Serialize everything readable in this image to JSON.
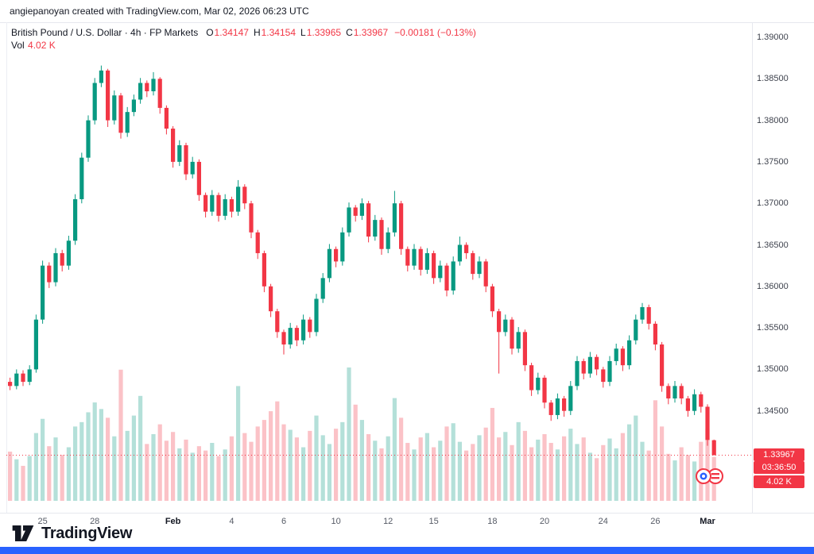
{
  "attribution": "angiepanoyan created with TradingView.com, Mar 02, 2026 06:23 UTC",
  "legend": {
    "title": "British Pound / U.S. Dollar · 4h · FP Markets",
    "o_label": "O",
    "o_value": "1.34147",
    "h_label": "H",
    "h_value": "1.34154",
    "l_label": "L",
    "l_value": "1.33965",
    "c_label": "C",
    "c_value": "1.33967",
    "change": "−0.00181 (−0.13%)",
    "vol_label": "Vol",
    "vol_value": "4.02 K"
  },
  "price_axis": {
    "current_price": "1.33967",
    "countdown": "03:36:50",
    "volume_badge": "4.02 K"
  },
  "footer": {
    "brand": "TradingView"
  },
  "colors": {
    "up": "#089981",
    "down": "#f23645",
    "vol_up": "rgba(8,153,129,0.30)",
    "vol_down": "rgba(242,54,69,0.30)",
    "accent_blue": "#2962ff",
    "axis_text": "#3f434e"
  },
  "chart_data": {
    "type": "candlestick",
    "title": "British Pound / U.S. Dollar, 4h, FP Markets",
    "ylabel": "Price (USD)",
    "last_price": 1.33967,
    "last_volume_k": 4.02,
    "y_ticks": [
      "1.39000",
      "1.38500",
      "1.38000",
      "1.37500",
      "1.37000",
      "1.36500",
      "1.36000",
      "1.35500",
      "1.35000",
      "1.34500"
    ],
    "x_ticks": [
      {
        "text": "25",
        "idx": 5,
        "major": false
      },
      {
        "text": "28",
        "idx": 13,
        "major": false
      },
      {
        "text": "Feb",
        "idx": 25,
        "major": true
      },
      {
        "text": "4",
        "idx": 34,
        "major": false
      },
      {
        "text": "6",
        "idx": 42,
        "major": false
      },
      {
        "text": "10",
        "idx": 50,
        "major": false
      },
      {
        "text": "12",
        "idx": 58,
        "major": false
      },
      {
        "text": "15",
        "idx": 65,
        "major": false
      },
      {
        "text": "18",
        "idx": 74,
        "major": false
      },
      {
        "text": "20",
        "idx": 82,
        "major": false
      },
      {
        "text": "24",
        "idx": 91,
        "major": false
      },
      {
        "text": "26",
        "idx": 99,
        "major": false
      },
      {
        "text": "Mar",
        "idx": 107,
        "major": true
      }
    ],
    "ohlc_format": [
      "open",
      "high",
      "low",
      "close"
    ],
    "candles": [
      [
        1.3485,
        1.349,
        1.3475,
        1.348
      ],
      [
        1.348,
        1.35,
        1.3476,
        1.3495
      ],
      [
        1.3495,
        1.3499,
        1.348,
        1.3485
      ],
      [
        1.3485,
        1.3505,
        1.3481,
        1.35
      ],
      [
        1.35,
        1.3566,
        1.3496,
        1.356
      ],
      [
        1.356,
        1.3631,
        1.3555,
        1.3625
      ],
      [
        1.3625,
        1.3629,
        1.3598,
        1.3605
      ],
      [
        1.3605,
        1.3646,
        1.36,
        1.364
      ],
      [
        1.364,
        1.3644,
        1.3618,
        1.3625
      ],
      [
        1.3625,
        1.3661,
        1.362,
        1.3655
      ],
      [
        1.3655,
        1.3711,
        1.365,
        1.3705
      ],
      [
        1.3705,
        1.3761,
        1.37,
        1.3755
      ],
      [
        1.3755,
        1.3806,
        1.375,
        1.38
      ],
      [
        1.38,
        1.3851,
        1.3795,
        1.3845
      ],
      [
        1.3845,
        1.3866,
        1.384,
        1.386
      ],
      [
        1.386,
        1.3862,
        1.3792,
        1.38
      ],
      [
        1.38,
        1.3836,
        1.3795,
        1.383
      ],
      [
        1.383,
        1.3833,
        1.3778,
        1.3785
      ],
      [
        1.3785,
        1.3816,
        1.378,
        1.381
      ],
      [
        1.381,
        1.3831,
        1.3805,
        1.3825
      ],
      [
        1.3825,
        1.3851,
        1.382,
        1.3845
      ],
      [
        1.3845,
        1.3848,
        1.3828,
        1.3835
      ],
      [
        1.3835,
        1.3858,
        1.383,
        1.385
      ],
      [
        1.385,
        1.3852,
        1.3808,
        1.3815
      ],
      [
        1.3815,
        1.3818,
        1.3783,
        1.379
      ],
      [
        1.379,
        1.3793,
        1.3743,
        1.375
      ],
      [
        1.375,
        1.3776,
        1.3745,
        1.377
      ],
      [
        1.377,
        1.3773,
        1.3728,
        1.3735
      ],
      [
        1.3735,
        1.3756,
        1.373,
        1.375
      ],
      [
        1.375,
        1.3753,
        1.3703,
        1.371
      ],
      [
        1.371,
        1.3713,
        1.3683,
        1.369
      ],
      [
        1.369,
        1.3716,
        1.3685,
        1.371
      ],
      [
        1.371,
        1.3713,
        1.3678,
        1.3685
      ],
      [
        1.3685,
        1.3711,
        1.368,
        1.3705
      ],
      [
        1.3705,
        1.3708,
        1.3683,
        1.369
      ],
      [
        1.369,
        1.3728,
        1.3685,
        1.372
      ],
      [
        1.372,
        1.3723,
        1.3693,
        1.37
      ],
      [
        1.37,
        1.3703,
        1.3658,
        1.3665
      ],
      [
        1.3665,
        1.3668,
        1.3633,
        1.364
      ],
      [
        1.364,
        1.3643,
        1.3593,
        1.36
      ],
      [
        1.36,
        1.3603,
        1.3563,
        1.357
      ],
      [
        1.357,
        1.3573,
        1.3538,
        1.3545
      ],
      [
        1.3545,
        1.3548,
        1.3518,
        1.353
      ],
      [
        1.353,
        1.3556,
        1.3525,
        1.355
      ],
      [
        1.355,
        1.3553,
        1.3528,
        1.3535
      ],
      [
        1.3535,
        1.3566,
        1.353,
        1.356
      ],
      [
        1.356,
        1.3563,
        1.3538,
        1.3545
      ],
      [
        1.3545,
        1.3591,
        1.354,
        1.3585
      ],
      [
        1.3585,
        1.3616,
        1.358,
        1.361
      ],
      [
        1.361,
        1.3651,
        1.3605,
        1.3645
      ],
      [
        1.3645,
        1.3648,
        1.3623,
        1.363
      ],
      [
        1.363,
        1.3671,
        1.3625,
        1.3665
      ],
      [
        1.3665,
        1.3701,
        1.366,
        1.3695
      ],
      [
        1.3695,
        1.3698,
        1.3678,
        1.3685
      ],
      [
        1.3685,
        1.3706,
        1.368,
        1.37
      ],
      [
        1.37,
        1.3703,
        1.3653,
        1.366
      ],
      [
        1.366,
        1.3686,
        1.3655,
        1.368
      ],
      [
        1.368,
        1.3683,
        1.3638,
        1.3645
      ],
      [
        1.3645,
        1.3671,
        1.364,
        1.3665
      ],
      [
        1.3665,
        1.3715,
        1.366,
        1.37
      ],
      [
        1.37,
        1.3703,
        1.3638,
        1.3645
      ],
      [
        1.3645,
        1.3648,
        1.3618,
        1.3625
      ],
      [
        1.3625,
        1.3651,
        1.362,
        1.3645
      ],
      [
        1.3645,
        1.3648,
        1.3613,
        1.362
      ],
      [
        1.362,
        1.3646,
        1.3615,
        1.364
      ],
      [
        1.364,
        1.3643,
        1.3603,
        1.361
      ],
      [
        1.361,
        1.3631,
        1.3605,
        1.3625
      ],
      [
        1.3625,
        1.3628,
        1.3588,
        1.3595
      ],
      [
        1.3595,
        1.3636,
        1.359,
        1.363
      ],
      [
        1.363,
        1.366,
        1.3625,
        1.365
      ],
      [
        1.365,
        1.3653,
        1.3633,
        1.364
      ],
      [
        1.364,
        1.3643,
        1.3608,
        1.3615
      ],
      [
        1.3615,
        1.3636,
        1.361,
        1.363
      ],
      [
        1.363,
        1.3633,
        1.3593,
        1.36
      ],
      [
        1.36,
        1.3603,
        1.3563,
        1.357
      ],
      [
        1.357,
        1.3573,
        1.3495,
        1.3545
      ],
      [
        1.3545,
        1.3566,
        1.354,
        1.356
      ],
      [
        1.356,
        1.3563,
        1.3518,
        1.3525
      ],
      [
        1.3525,
        1.3551,
        1.352,
        1.3545
      ],
      [
        1.3545,
        1.3548,
        1.3498,
        1.3505
      ],
      [
        1.3505,
        1.3508,
        1.3468,
        1.3475
      ],
      [
        1.3475,
        1.3496,
        1.347,
        1.349
      ],
      [
        1.349,
        1.3493,
        1.3453,
        1.346
      ],
      [
        1.346,
        1.3463,
        1.3438,
        1.3445
      ],
      [
        1.3445,
        1.3471,
        1.344,
        1.3465
      ],
      [
        1.3465,
        1.3468,
        1.3443,
        1.345
      ],
      [
        1.345,
        1.3486,
        1.3445,
        1.348
      ],
      [
        1.348,
        1.3516,
        1.3475,
        1.351
      ],
      [
        1.351,
        1.3513,
        1.3488,
        1.3495
      ],
      [
        1.3495,
        1.3521,
        1.349,
        1.3515
      ],
      [
        1.3515,
        1.3518,
        1.3493,
        1.35
      ],
      [
        1.35,
        1.3503,
        1.3478,
        1.3485
      ],
      [
        1.3485,
        1.3516,
        1.348,
        1.351
      ],
      [
        1.351,
        1.3531,
        1.3505,
        1.3525
      ],
      [
        1.3525,
        1.3528,
        1.3498,
        1.3505
      ],
      [
        1.3505,
        1.3541,
        1.35,
        1.3535
      ],
      [
        1.3535,
        1.3566,
        1.353,
        1.356
      ],
      [
        1.356,
        1.358,
        1.3555,
        1.3575
      ],
      [
        1.3575,
        1.3578,
        1.3548,
        1.3555
      ],
      [
        1.3555,
        1.3558,
        1.3523,
        1.353
      ],
      [
        1.353,
        1.3533,
        1.3473,
        1.348
      ],
      [
        1.348,
        1.3483,
        1.3458,
        1.3465
      ],
      [
        1.3465,
        1.3486,
        1.346,
        1.348
      ],
      [
        1.348,
        1.3483,
        1.3458,
        1.3465
      ],
      [
        1.3465,
        1.3468,
        1.3443,
        1.345
      ],
      [
        1.345,
        1.3476,
        1.3445,
        1.347
      ],
      [
        1.347,
        1.3473,
        1.3448,
        1.3455
      ],
      [
        1.3455,
        1.3458,
        1.3408,
        1.3415
      ],
      [
        1.34147,
        1.34154,
        1.33965,
        1.33967
      ]
    ],
    "volumes_k": [
      4.5,
      3.8,
      3.2,
      4.1,
      6.2,
      7.5,
      5.0,
      5.8,
      4.2,
      4.9,
      6.8,
      7.2,
      8.1,
      9.0,
      8.4,
      7.6,
      5.9,
      12.0,
      6.4,
      7.8,
      9.6,
      5.2,
      6.1,
      7.0,
      5.5,
      6.3,
      4.8,
      5.6,
      4.4,
      5.0,
      4.6,
      5.3,
      4.1,
      4.7,
      5.9,
      10.5,
      6.2,
      5.4,
      6.8,
      7.4,
      8.2,
      9.1,
      7.0,
      6.5,
      5.8,
      4.9,
      6.4,
      7.8,
      6.0,
      5.2,
      6.6,
      7.2,
      12.2,
      8.8,
      7.4,
      6.1,
      5.5,
      4.8,
      5.9,
      9.4,
      7.6,
      5.3,
      4.7,
      5.8,
      6.2,
      4.9,
      5.5,
      6.8,
      7.1,
      5.4,
      4.6,
      5.2,
      6.0,
      6.7,
      8.5,
      5.8,
      6.3,
      5.1,
      7.2,
      6.4,
      4.9,
      5.6,
      6.1,
      5.3,
      4.7,
      5.9,
      6.6,
      5.2,
      5.8,
      4.4,
      3.9,
      5.1,
      5.7,
      4.8,
      6.2,
      7.0,
      7.8,
      5.4,
      4.6,
      9.2,
      6.8,
      4.3,
      3.7,
      4.9,
      4.2,
      3.6,
      5.4,
      6.6,
      4.02
    ]
  }
}
